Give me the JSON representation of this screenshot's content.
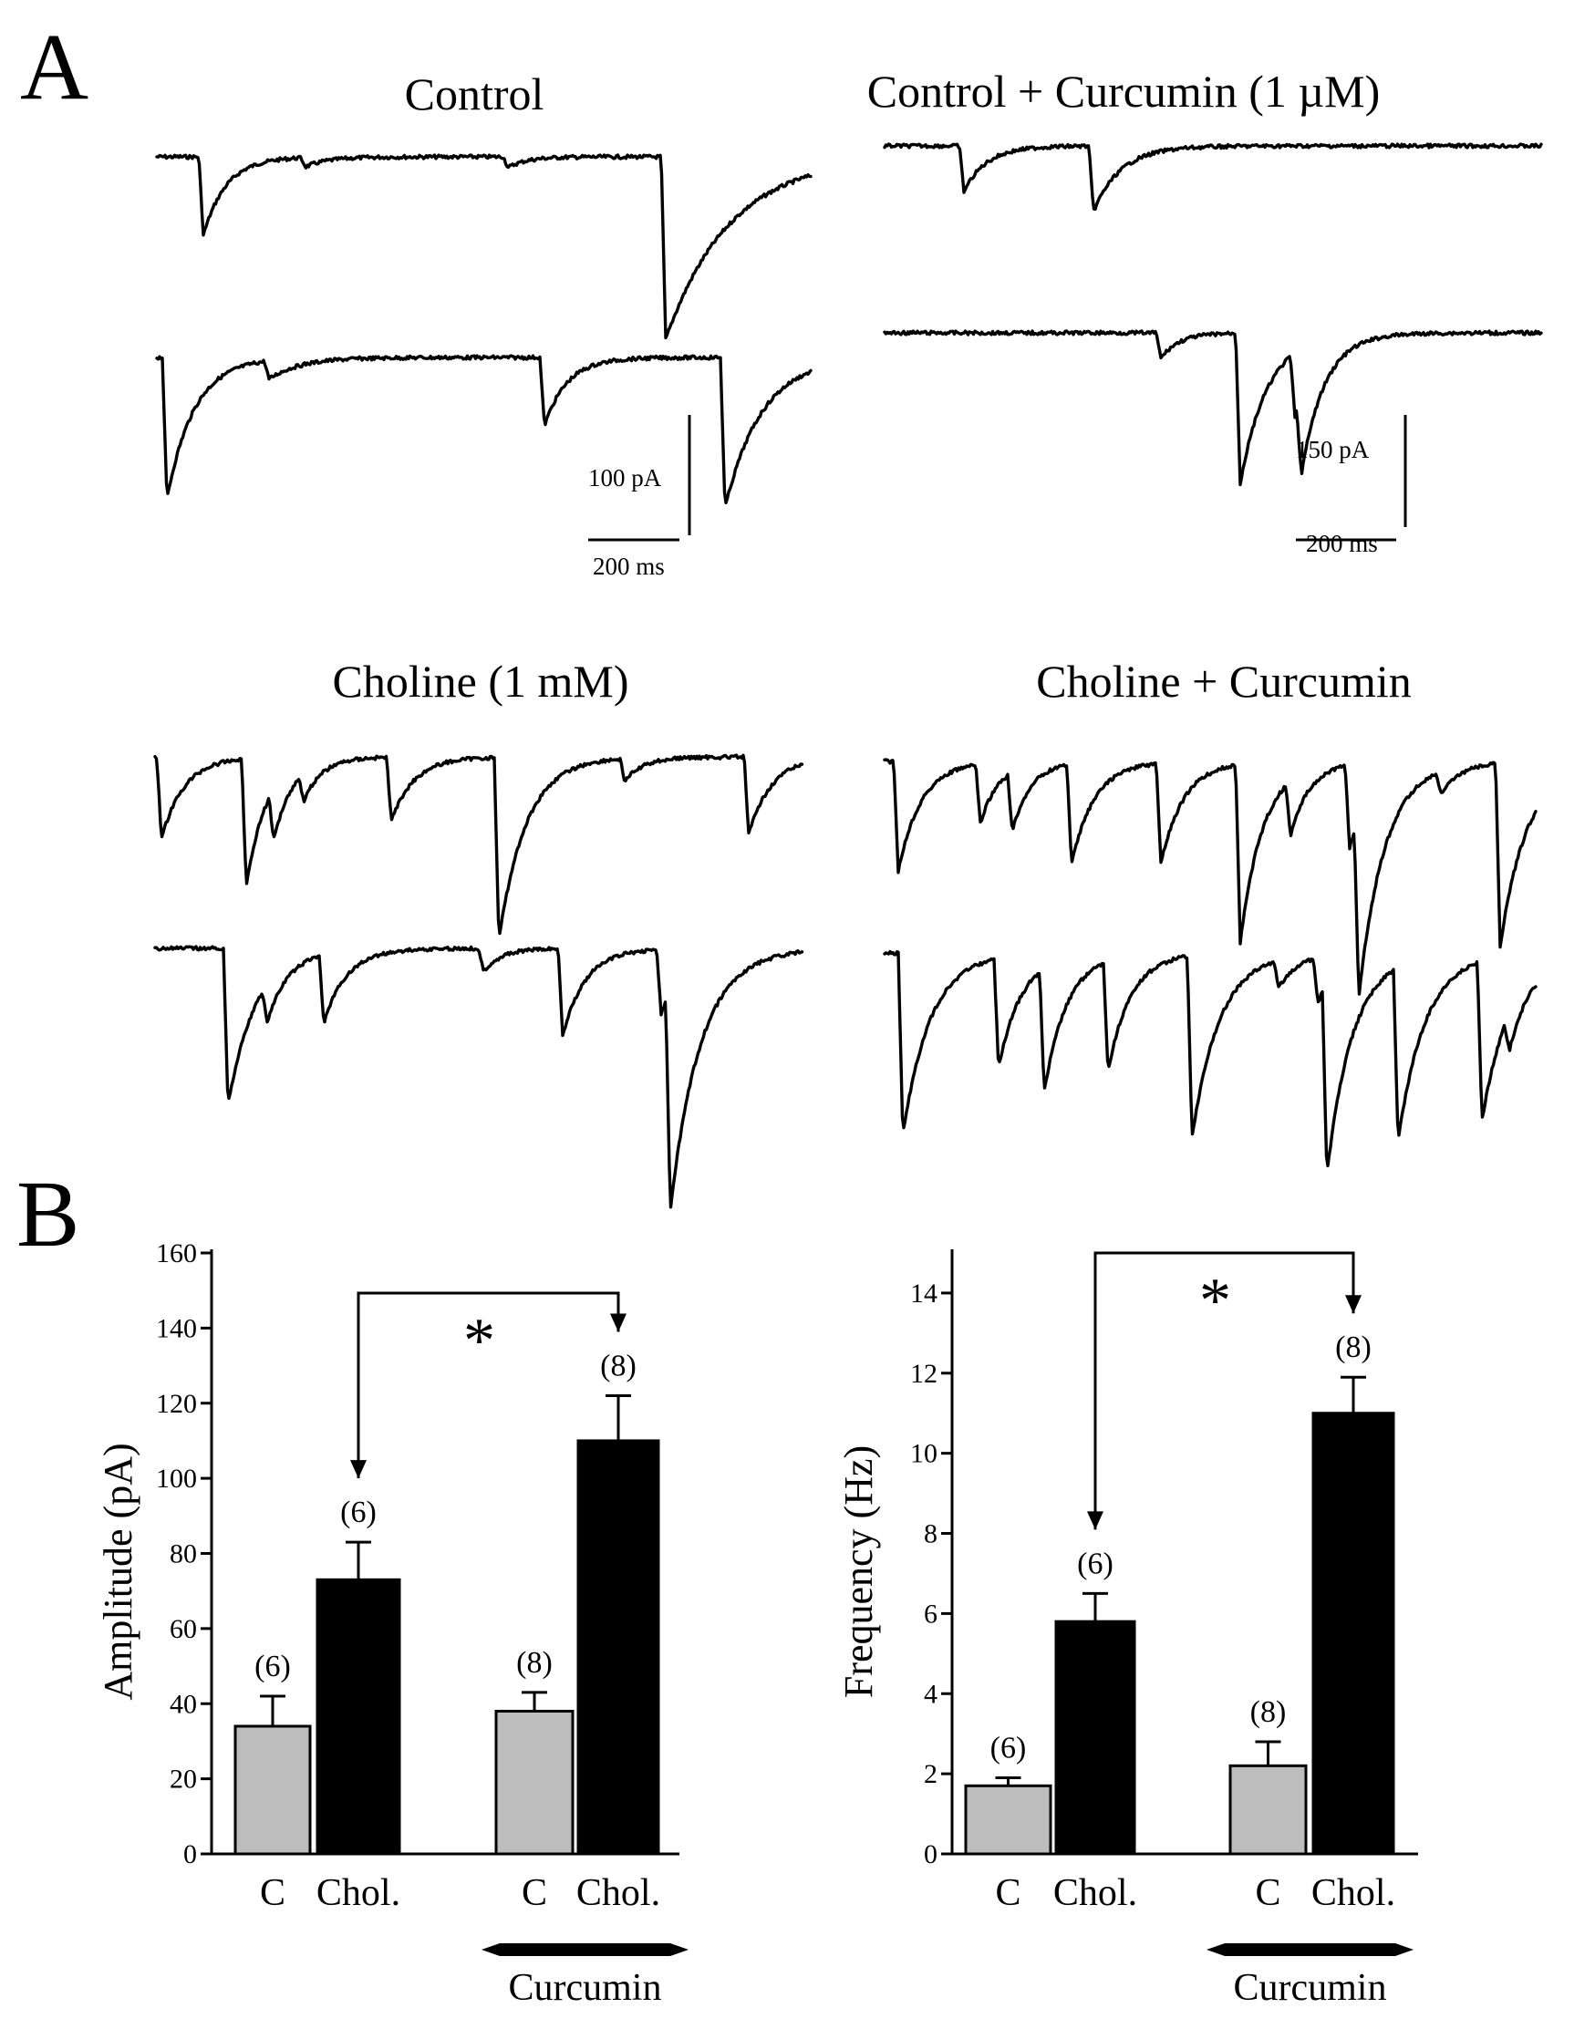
{
  "panels": {
    "a_label": "A",
    "b_label": "B"
  },
  "traces": {
    "control_title": "Control",
    "control_curcumin_title": "Control  + Curcumin (1 µM)",
    "choline_title": "Choline (1 mM)",
    "choline_curcumin_title": "Choline + Curcumin",
    "scale_left_current": "100 pA",
    "scale_left_time": "200 ms",
    "scale_right_current": "150 pA",
    "scale_right_time": "200 ms"
  },
  "chart_data": [
    {
      "type": "bar",
      "categories": [
        "C",
        "Chol.",
        "C",
        "Chol."
      ],
      "group_label": "Curcumin",
      "ylabel": "Amplitude (pA)",
      "ylim": [
        0,
        160
      ],
      "yticks": [
        0,
        20,
        40,
        60,
        80,
        100,
        120,
        140,
        160
      ],
      "values": [
        34,
        73,
        38,
        110
      ],
      "errors": [
        8,
        10,
        5,
        12
      ],
      "n_labels": [
        "(6)",
        "(6)",
        "(8)",
        "(8)"
      ],
      "bar_colors": [
        "#bdbdbd",
        "#000000",
        "#bdbdbd",
        "#000000"
      ],
      "significance": {
        "from": 1,
        "to": 3,
        "label": "*"
      }
    },
    {
      "type": "bar",
      "categories": [
        "C",
        "Chol.",
        "C",
        "Chol."
      ],
      "group_label": "Curcumin",
      "ylabel": "Frequency (Hz)",
      "ylim": [
        0,
        15
      ],
      "yticks": [
        0,
        2,
        4,
        6,
        8,
        10,
        12,
        14
      ],
      "values": [
        1.7,
        5.8,
        2.2,
        11.0
      ],
      "errors": [
        0.2,
        0.7,
        0.6,
        0.9
      ],
      "n_labels": [
        "(6)",
        "(6)",
        "(8)",
        "(8)"
      ],
      "bar_colors": [
        "#bdbdbd",
        "#000000",
        "#bdbdbd",
        "#000000"
      ],
      "significance": {
        "from": 1,
        "to": 3,
        "label": "*"
      }
    }
  ]
}
